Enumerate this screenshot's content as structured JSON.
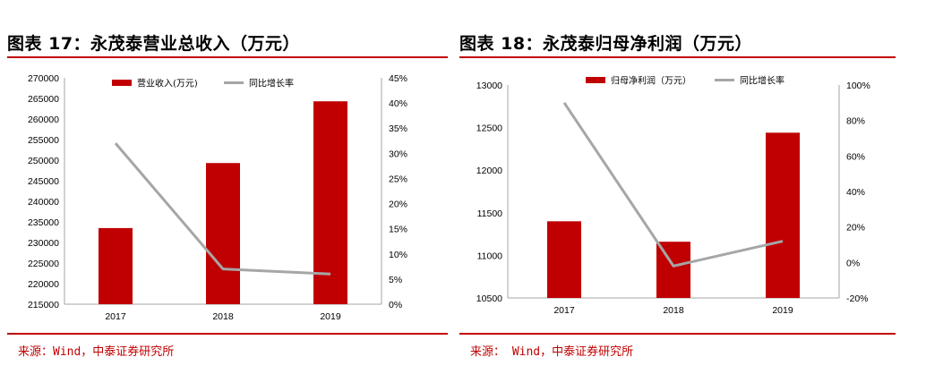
{
  "colors": {
    "bar": "#c00000",
    "line": "#a6a6a6",
    "accent": "#c00000",
    "axis": "#a6a6a6"
  },
  "chart_data": [
    {
      "type": "bar",
      "title": "图表 17：永茂泰营业总收入（万元）",
      "source": "来源：Wind，中泰证券研究所",
      "categories": [
        "2017",
        "2018",
        "2019"
      ],
      "series": [
        {
          "name": "营业收入(万元)",
          "type": "bar",
          "axis": "left",
          "values": [
            233500,
            249300,
            264300
          ]
        },
        {
          "name": "同比增长率",
          "type": "line",
          "axis": "right",
          "values": [
            32.0,
            7.0,
            6.0
          ]
        }
      ],
      "ylim": [
        215000,
        270000
      ],
      "ystep": 5000,
      "ylim_right": [
        0,
        45
      ],
      "ystep_right": 5,
      "right_tick_suffix": "%",
      "legend_position": "top"
    },
    {
      "type": "bar",
      "title": "图表 18：永茂泰归母净利润（万元）",
      "source": "来源： Wind，中泰证券研究所",
      "categories": [
        "2017",
        "2018",
        "2019"
      ],
      "series": [
        {
          "name": "归母净利润（万元）",
          "type": "bar",
          "axis": "left",
          "values": [
            11400,
            11160,
            12440
          ]
        },
        {
          "name": "同比增长率",
          "type": "line",
          "axis": "right",
          "values": [
            90,
            -2,
            12
          ]
        }
      ],
      "ylim": [
        10500,
        13000
      ],
      "ystep": 500,
      "ylim_right": [
        -20,
        100
      ],
      "ystep_right": 20,
      "right_tick_suffix": "%",
      "legend_position": "top"
    }
  ]
}
